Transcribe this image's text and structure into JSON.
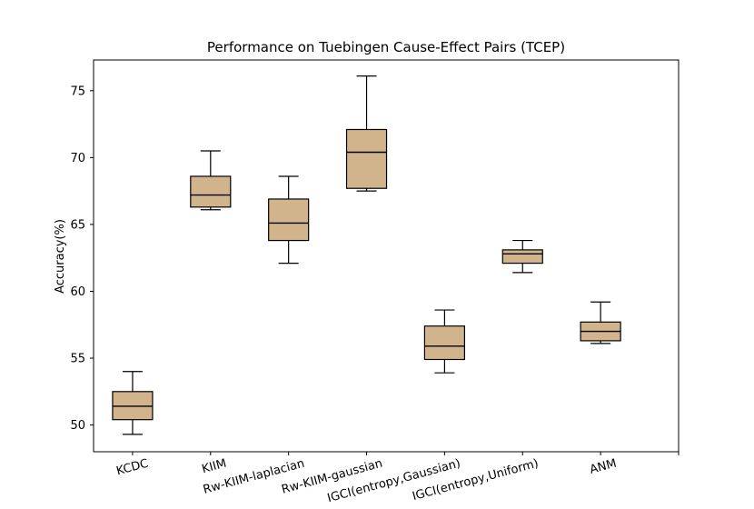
{
  "chart_data": {
    "type": "boxplot",
    "title": "Performance on Tuebingen Cause-Effect Pairs (TCEP)",
    "xlabel": "",
    "ylabel": "Accuracy(%)",
    "ylim": [
      48.0,
      77.3
    ],
    "yticks": [
      50,
      55,
      60,
      65,
      70,
      75
    ],
    "xtick_positions": [
      1,
      2,
      3,
      4,
      5,
      6,
      7,
      8
    ],
    "xlim": [
      0.5,
      8.0
    ],
    "grid": false,
    "box_color": "#d2b48c",
    "edge_color": "#000000",
    "series": [
      {
        "name": "KCDC",
        "whisker_low": 49.3,
        "q1": 50.4,
        "median": 51.4,
        "q3": 52.5,
        "whisker_high": 54.0
      },
      {
        "name": "KIIM",
        "whisker_low": 66.1,
        "q1": 66.3,
        "median": 67.2,
        "q3": 68.6,
        "whisker_high": 70.5
      },
      {
        "name": "Rw-KIIM-laplacian",
        "whisker_low": 62.1,
        "q1": 63.8,
        "median": 65.1,
        "q3": 66.9,
        "whisker_high": 68.6
      },
      {
        "name": "Rw-KIIM-gaussian",
        "whisker_low": 67.5,
        "q1": 67.7,
        "median": 70.4,
        "q3": 72.1,
        "whisker_high": 76.1
      },
      {
        "name": "IGCI(entropy,Gaussian)",
        "whisker_low": 53.9,
        "q1": 54.9,
        "median": 55.9,
        "q3": 57.4,
        "whisker_high": 58.6
      },
      {
        "name": "IGCI(entropy,Uniform)",
        "whisker_low": 61.4,
        "q1": 62.1,
        "median": 62.8,
        "q3": 63.1,
        "whisker_high": 63.8
      },
      {
        "name": "ANM",
        "whisker_low": 56.1,
        "q1": 56.3,
        "median": 57.0,
        "q3": 57.7,
        "whisker_high": 59.2
      }
    ]
  }
}
